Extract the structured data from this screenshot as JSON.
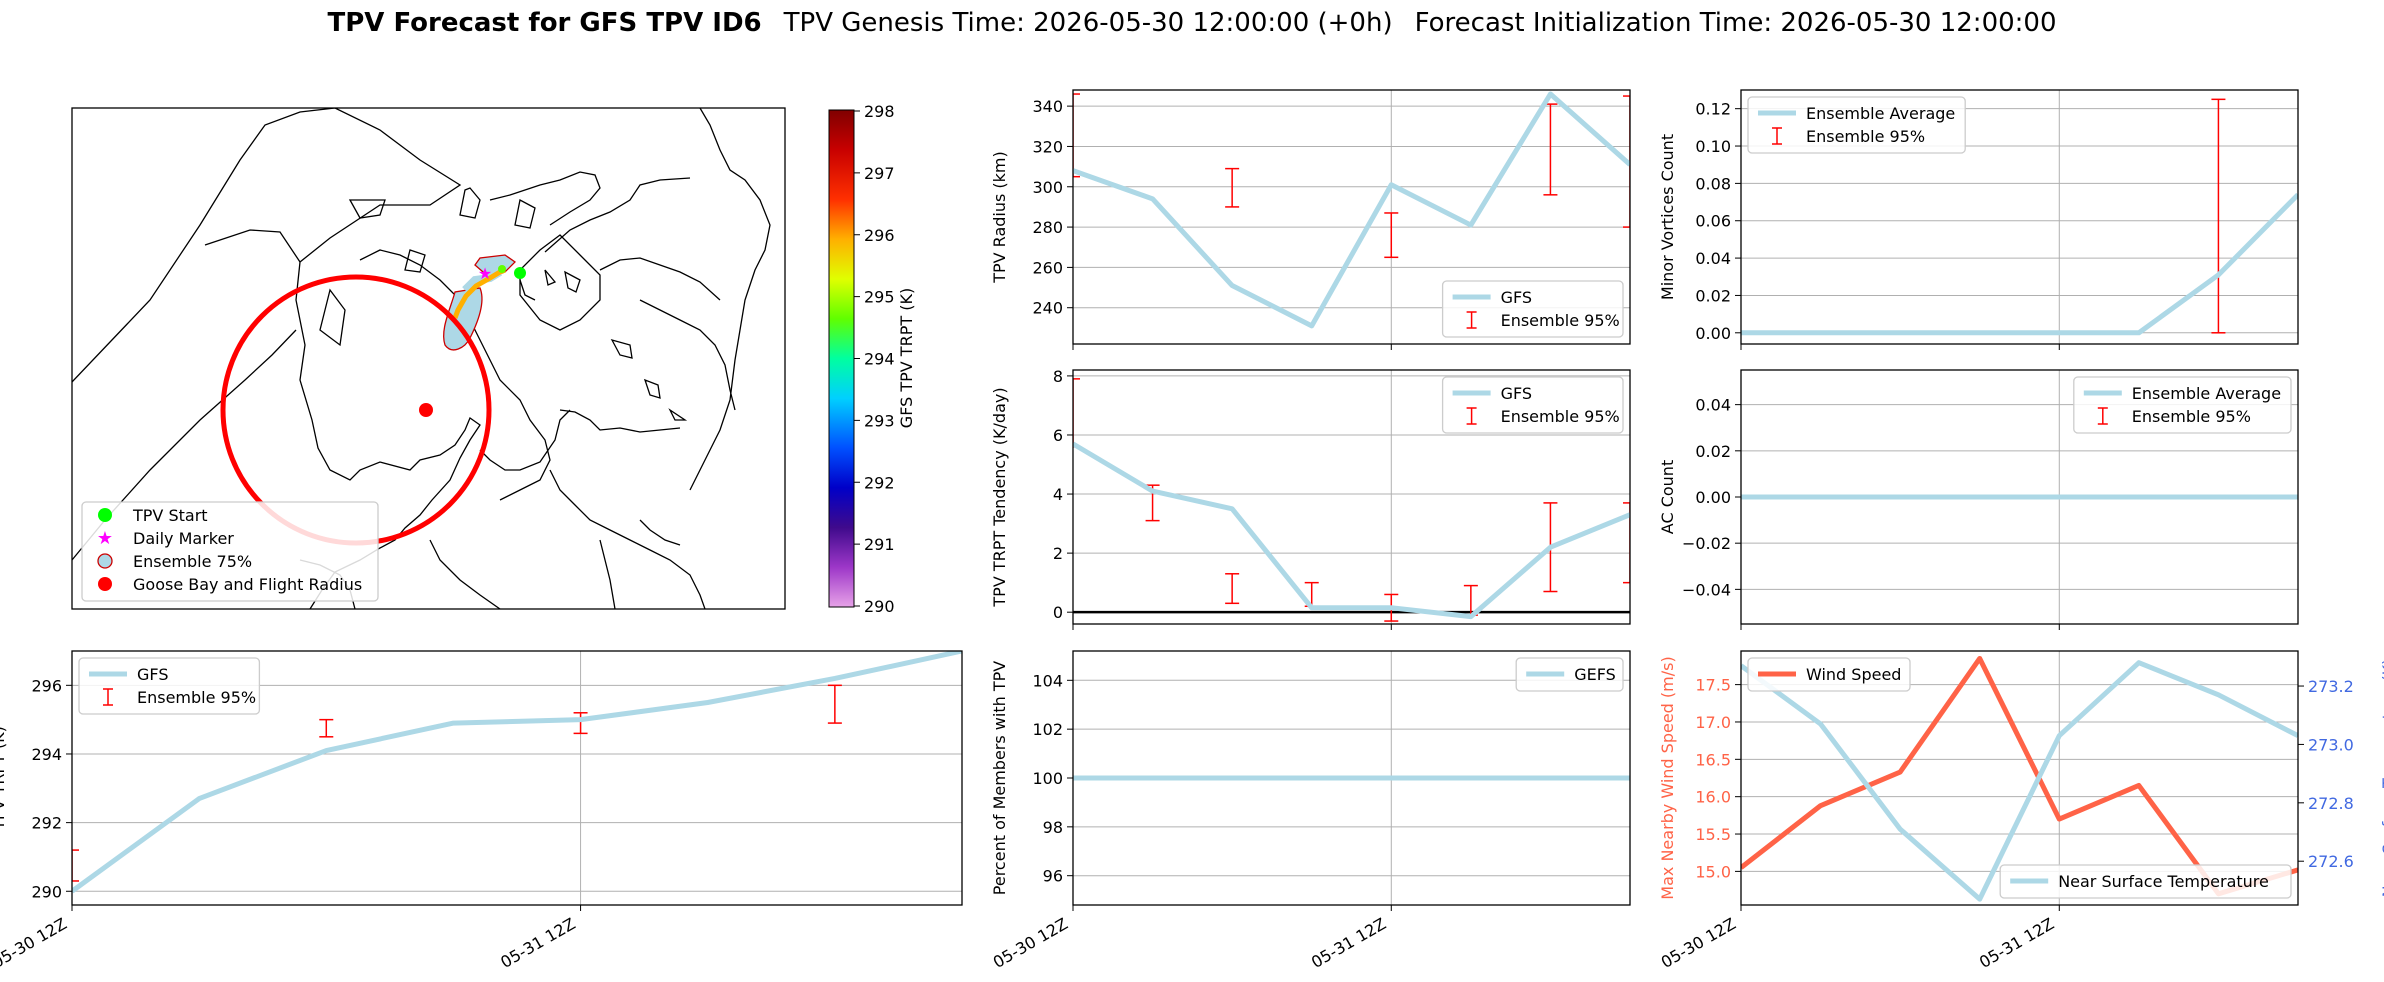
{
  "figure": {
    "title_bold": "TPV Forecast for GFS TPV ID6",
    "title_genesis": "TPV Genesis Time: 2026-05-30 12:00:00 (+0h)",
    "title_init": "Forecast Initialization Time: 2026-05-30 12:00:00"
  },
  "x_ticks": [
    "05-30 12Z",
    "05-31 12Z"
  ],
  "colors": {
    "gfs": "#add8e6",
    "error": "#ff0000",
    "wind": "#ff6347",
    "temp_axis": "#4169e1",
    "marker_green": "#00ff00",
    "marker_magenta": "#ff00ff"
  },
  "map": {
    "legend": [
      "TPV Start",
      "Daily Marker",
      "Ensemble 75%",
      "Goose Bay and Flight Radius"
    ],
    "colorbar_label": "GFS TPV TRPT (K)",
    "colorbar_ticks": [
      "298",
      "297",
      "296",
      "295",
      "294",
      "293",
      "292",
      "291",
      "290"
    ]
  },
  "chart_data": [
    {
      "id": "radius",
      "type": "line",
      "ylabel": "TPV Radius (km)",
      "ylim": [
        222,
        348
      ],
      "yticks": [
        "240",
        "260",
        "280",
        "300",
        "320",
        "340"
      ],
      "ytick_values": [
        240,
        260,
        280,
        300,
        320,
        340
      ],
      "x": [
        0,
        0.25,
        0.5,
        0.75,
        1.0,
        1.25,
        1.5,
        1.75
      ],
      "series": [
        {
          "name": "GFS",
          "values": [
            308,
            294,
            251,
            231,
            301,
            281,
            346,
            311
          ]
        }
      ],
      "errorbars": [
        {
          "x": 0,
          "low": 305,
          "high": 346
        },
        {
          "x": 0.5,
          "low": 290,
          "high": 309
        },
        {
          "x": 1.0,
          "low": 265,
          "high": 287
        },
        {
          "x": 1.5,
          "low": 296,
          "high": 341
        },
        {
          "x": 1.75,
          "low": 280,
          "high": 345
        }
      ],
      "legend": [
        "GFS",
        "Ensemble 95%"
      ],
      "legend_loc": "lower right"
    },
    {
      "id": "minor",
      "type": "line",
      "ylabel": "Minor Vortices Count",
      "ylim": [
        -0.006,
        0.13
      ],
      "yticks": [
        "0.00",
        "0.02",
        "0.04",
        "0.06",
        "0.08",
        "0.10",
        "0.12"
      ],
      "ytick_values": [
        0,
        0.02,
        0.04,
        0.06,
        0.08,
        0.1,
        0.12
      ],
      "x": [
        0,
        0.25,
        0.5,
        0.75,
        1.0,
        1.25,
        1.5,
        1.75
      ],
      "series": [
        {
          "name": "Ensemble Average",
          "values": [
            0,
            0,
            0,
            0,
            0,
            0,
            0.031,
            0.074
          ]
        }
      ],
      "errorbars": [
        {
          "x": 0,
          "low": 0,
          "high": 0
        },
        {
          "x": 0.5,
          "low": 0,
          "high": 0
        },
        {
          "x": 1.0,
          "low": 0,
          "high": 0
        },
        {
          "x": 1.5,
          "low": 0,
          "high": 0.125
        }
      ],
      "legend": [
        "Ensemble Average",
        "Ensemble 95%"
      ],
      "legend_loc": "upper left"
    },
    {
      "id": "tendency",
      "type": "line",
      "ylabel": "TPV TRPT Tendency (K/day)",
      "ylim": [
        -0.4,
        8.2
      ],
      "yticks": [
        "0",
        "2",
        "4",
        "6",
        "8"
      ],
      "ytick_values": [
        0,
        2,
        4,
        6,
        8
      ],
      "x": [
        0,
        0.25,
        0.5,
        0.75,
        1.0,
        1.25,
        1.5,
        1.75
      ],
      "series": [
        {
          "name": "GFS",
          "values": [
            5.7,
            4.1,
            3.5,
            0.15,
            0.15,
            -0.15,
            2.2,
            3.3
          ]
        }
      ],
      "errorbars": [
        {
          "x": 0,
          "low": 5.6,
          "high": 7.9
        },
        {
          "x": 0.25,
          "low": 3.1,
          "high": 4.3
        },
        {
          "x": 0.5,
          "low": 0.3,
          "high": 1.3
        },
        {
          "x": 0.75,
          "low": 0.2,
          "high": 1.0
        },
        {
          "x": 1.0,
          "low": -0.3,
          "high": 0.6
        },
        {
          "x": 1.25,
          "low": -0.1,
          "high": 0.9
        },
        {
          "x": 1.5,
          "low": 0.7,
          "high": 3.7
        },
        {
          "x": 1.75,
          "low": 1.0,
          "high": 3.7
        }
      ],
      "hline": 0,
      "legend": [
        "GFS",
        "Ensemble 95%"
      ],
      "legend_loc": "upper right"
    },
    {
      "id": "ac",
      "type": "line",
      "ylabel": "AC Count",
      "ylim": [
        -0.055,
        0.055
      ],
      "yticks": [
        "−0.04",
        "−0.02",
        "0.00",
        "0.02",
        "0.04"
      ],
      "ytick_values": [
        -0.04,
        -0.02,
        0,
        0.02,
        0.04
      ],
      "x": [
        0,
        0.25,
        0.5,
        0.75,
        1.0,
        1.25,
        1.5,
        1.75
      ],
      "series": [
        {
          "name": "Ensemble Average",
          "values": [
            0,
            0,
            0,
            0,
            0,
            0,
            0,
            0
          ]
        }
      ],
      "errorbars": [
        {
          "x": 0,
          "low": 0,
          "high": 0
        },
        {
          "x": 0.5,
          "low": 0,
          "high": 0
        },
        {
          "x": 1.0,
          "low": 0,
          "high": 0
        },
        {
          "x": 1.5,
          "low": 0,
          "high": 0
        }
      ],
      "legend": [
        "Ensemble Average",
        "Ensemble 95%"
      ],
      "legend_loc": "upper right"
    },
    {
      "id": "trpt",
      "type": "line",
      "ylabel": "TPV TRPT (K)",
      "ylim": [
        289.6,
        297.0
      ],
      "yticks": [
        "290",
        "292",
        "294",
        "296"
      ],
      "ytick_values": [
        290,
        292,
        294,
        296
      ],
      "x": [
        0,
        0.25,
        0.5,
        0.75,
        1.0,
        1.25,
        1.5,
        1.75
      ],
      "series": [
        {
          "name": "GFS",
          "values": [
            290.0,
            292.7,
            294.1,
            294.9,
            295.0,
            295.5,
            296.2,
            297.0
          ]
        }
      ],
      "errorbars": [
        {
          "x": 0,
          "low": 290.3,
          "high": 291.2
        },
        {
          "x": 0.5,
          "low": 294.5,
          "high": 295.0
        },
        {
          "x": 1.0,
          "low": 294.6,
          "high": 295.2
        },
        {
          "x": 1.5,
          "low": 294.9,
          "high": 296.0
        }
      ],
      "legend": [
        "GFS",
        "Ensemble 95%"
      ],
      "legend_loc": "upper left"
    },
    {
      "id": "percent",
      "type": "line",
      "ylabel": "Percent of Members with TPV",
      "ylim": [
        94.8,
        105.2
      ],
      "yticks": [
        "96",
        "98",
        "100",
        "102",
        "104"
      ],
      "ytick_values": [
        96,
        98,
        100,
        102,
        104
      ],
      "x": [
        0,
        0.25,
        0.5,
        0.75,
        1.0,
        1.25,
        1.5,
        1.75
      ],
      "series": [
        {
          "name": "GEFS",
          "values": [
            100,
            100,
            100,
            100,
            100,
            100,
            100,
            100
          ]
        }
      ],
      "legend": [
        "GEFS"
      ],
      "legend_loc": "upper right"
    },
    {
      "id": "wind",
      "type": "line",
      "ylabel": "Max Nearby Wind Speed (m/s)",
      "ylim": [
        14.55,
        17.95
      ],
      "yticks": [
        "15.0",
        "15.5",
        "16.0",
        "16.5",
        "17.0",
        "17.5"
      ],
      "ytick_values": [
        15.0,
        15.5,
        16.0,
        16.5,
        17.0,
        17.5
      ],
      "x": [
        0,
        0.25,
        0.5,
        0.75,
        1.0,
        1.25,
        1.5,
        1.75
      ],
      "series": [
        {
          "name": "Wind Speed",
          "values": [
            15.05,
            15.88,
            16.33,
            17.85,
            15.7,
            16.15,
            14.7,
            15.02
          ]
        }
      ],
      "legend": [
        "Wind Speed"
      ],
      "legend_loc": "upper left",
      "y2label": "Near Surface Temperature (K)",
      "y2lim": [
        272.45,
        273.32
      ],
      "y2ticks": [
        "272.6",
        "272.8",
        "273.0",
        "273.2"
      ],
      "y2tick_values": [
        272.6,
        272.8,
        273.0,
        273.2
      ],
      "series2": [
        {
          "name": "Near Surface Temperature",
          "values": [
            273.27,
            273.07,
            272.71,
            272.47,
            273.03,
            273.28,
            273.17,
            273.03
          ]
        }
      ],
      "legend2": [
        "Near Surface Temperature"
      ],
      "legend2_loc": "lower right"
    }
  ]
}
